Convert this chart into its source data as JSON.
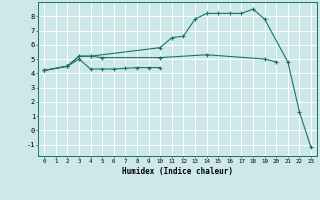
{
  "bg_color": "#cce8e8",
  "grid_color": "#ffffff",
  "line_color": "#1a7070",
  "xlabel": "Humidex (Indice chaleur)",
  "ylim": [
    -1.8,
    9.0
  ],
  "xlim": [
    -0.5,
    23.5
  ],
  "yticks": [
    -1,
    0,
    1,
    2,
    3,
    4,
    5,
    6,
    7,
    8
  ],
  "xticks": [
    0,
    1,
    2,
    3,
    4,
    5,
    6,
    7,
    8,
    9,
    10,
    11,
    12,
    13,
    14,
    15,
    16,
    17,
    18,
    19,
    20,
    21,
    22,
    23
  ],
  "line1_x": [
    0,
    2,
    3,
    4,
    10,
    11,
    12,
    13,
    14,
    15,
    16,
    17,
    18,
    19,
    21,
    22,
    23
  ],
  "line1_y": [
    4.2,
    4.5,
    5.2,
    5.2,
    5.8,
    6.5,
    6.6,
    7.8,
    8.2,
    8.2,
    8.2,
    8.2,
    8.5,
    7.8,
    4.8,
    1.3,
    -1.2
  ],
  "line2_x": [
    0,
    2,
    3,
    4,
    5,
    10,
    14,
    19,
    20
  ],
  "line2_y": [
    4.2,
    4.5,
    5.2,
    5.2,
    5.1,
    5.1,
    5.3,
    5.0,
    4.8
  ],
  "line3_x": [
    0,
    2,
    3,
    4,
    5,
    6,
    7,
    8,
    9,
    10
  ],
  "line3_y": [
    4.2,
    4.5,
    5.0,
    4.3,
    4.3,
    4.3,
    4.35,
    4.4,
    4.4,
    4.4
  ]
}
